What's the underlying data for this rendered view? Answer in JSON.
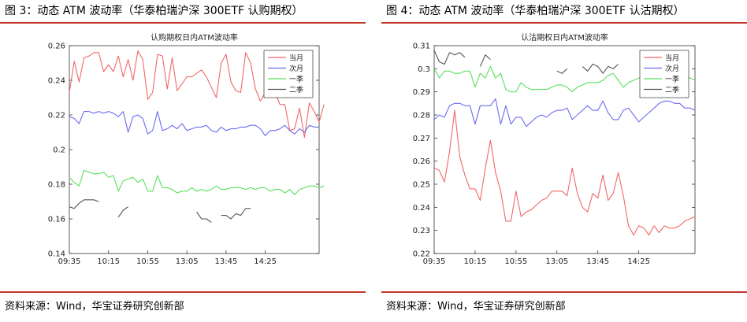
{
  "figures": [
    {
      "figure_title": "图 3：动态 ATM 波动率（华泰柏瑞沪深 300ETF 认购期权）",
      "source": "资料来源：Wind，华宝证券研究创新部"
    },
    {
      "figure_title": "图 4：动态 ATM 波动率（华泰柏瑞沪深 300ETF 认沽期权）",
      "source": "资料来源：Wind，华宝证券研究创新部"
    }
  ],
  "colors": {
    "rule": "#c0392b",
    "当月": "#f06868",
    "次月": "#6b6bf0",
    "一季": "#59e05c",
    "二季": "#555555"
  },
  "chart_data": [
    {
      "type": "line",
      "title": "认购期权日内ATM波动率",
      "xlabel": "",
      "ylabel": "",
      "x_ticks": [
        "09:35",
        "10:15",
        "10:55",
        "13:05",
        "13:45",
        "14:25"
      ],
      "x_tick_index": [
        0,
        8,
        16,
        24,
        32,
        40
      ],
      "y_ticks": [
        "0.14",
        "0.16",
        "0.18",
        "0.2",
        "0.22",
        "0.24",
        "0.26"
      ],
      "ylim": [
        0.14,
        0.26
      ],
      "xlim": [
        0,
        51
      ],
      "legend": {
        "placement": "top-right",
        "entries": [
          "当月",
          "次月",
          "一季",
          "二季"
        ]
      },
      "grid": false,
      "series": [
        {
          "name": "当月",
          "values": [
            0.233,
            0.251,
            0.239,
            0.253,
            0.254,
            0.256,
            0.256,
            0.245,
            0.249,
            0.245,
            0.254,
            0.242,
            0.252,
            0.24,
            0.257,
            0.252,
            0.229,
            0.233,
            0.255,
            0.254,
            0.235,
            0.253,
            0.234,
            0.238,
            0.242,
            0.242,
            0.244,
            0.246,
            0.242,
            0.236,
            0.23,
            0.25,
            0.255,
            0.239,
            0.234,
            0.233,
            0.256,
            0.25,
            0.235,
            0.228,
            0.233,
            0.246,
            0.233,
            0.226,
            0.226,
            0.211,
            0.212,
            0.224,
            0.207,
            0.227,
            0.222,
            0.216,
            0.226
          ]
        },
        {
          "name": "次月",
          "values": [
            0.219,
            0.218,
            0.215,
            0.222,
            0.222,
            0.221,
            0.222,
            0.221,
            0.222,
            0.221,
            0.219,
            0.222,
            0.21,
            0.219,
            0.22,
            0.218,
            0.209,
            0.211,
            0.222,
            0.211,
            0.212,
            0.214,
            0.212,
            0.215,
            0.211,
            0.212,
            0.213,
            0.213,
            0.214,
            0.211,
            0.21,
            0.213,
            0.211,
            0.212,
            0.212,
            0.213,
            0.213,
            0.214,
            0.214,
            0.212,
            0.208,
            0.211,
            0.211,
            0.212,
            0.214,
            0.211,
            0.209,
            0.212,
            0.21,
            0.214,
            0.213,
            0.213
          ]
        },
        {
          "name": "一季",
          "values": [
            0.184,
            0.181,
            0.179,
            0.188,
            0.187,
            0.186,
            0.186,
            0.187,
            0.184,
            0.185,
            0.176,
            0.182,
            0.183,
            0.184,
            0.181,
            0.183,
            0.176,
            0.176,
            0.185,
            0.178,
            0.178,
            0.177,
            0.175,
            0.176,
            0.176,
            0.178,
            0.176,
            0.177,
            0.176,
            0.177,
            0.179,
            0.177,
            0.177,
            0.178,
            0.178,
            0.178,
            0.177,
            0.178,
            0.177,
            0.178,
            0.178,
            0.176,
            0.177,
            0.177,
            0.175,
            0.177,
            0.174,
            0.177,
            0.178,
            0.179,
            0.179,
            0.178,
            0.179
          ]
        },
        {
          "name": "二季",
          "values": [
            0.167,
            0.166,
            0.169,
            0.171,
            0.171,
            0.171,
            0.17,
            null,
            null,
            null,
            0.161,
            0.165,
            0.167,
            null,
            null,
            null,
            null,
            null,
            null,
            null,
            null,
            null,
            null,
            null,
            null,
            null,
            0.164,
            0.16,
            0.16,
            0.158,
            null,
            0.162,
            0.162,
            0.16,
            0.163,
            0.162,
            0.166,
            0.166,
            null,
            null,
            null,
            null,
            null,
            null,
            null,
            null,
            null,
            null,
            null,
            null,
            null,
            null
          ]
        }
      ]
    },
    {
      "type": "line",
      "title": "认沽期权日内ATM波动率",
      "xlabel": "",
      "ylabel": "",
      "x_ticks": [
        "09:35",
        "10:15",
        "10:55",
        "13:05",
        "13:45",
        "14:25"
      ],
      "x_tick_index": [
        0,
        8,
        16,
        24,
        32,
        40
      ],
      "y_ticks": [
        "0.22",
        "0.23",
        "0.24",
        "0.25",
        "0.26",
        "0.27",
        "0.28",
        "0.29",
        "0.3",
        "0.31"
      ],
      "ylim": [
        0.22,
        0.31
      ],
      "xlim": [
        0,
        51
      ],
      "legend": {
        "placement": "top-right",
        "entries": [
          "当月",
          "次月",
          "一季",
          "二季"
        ]
      },
      "grid": false,
      "series": [
        {
          "name": "当月",
          "values": [
            0.257,
            0.256,
            0.251,
            0.264,
            0.282,
            0.262,
            0.254,
            0.248,
            0.248,
            0.243,
            0.257,
            0.269,
            0.255,
            0.247,
            0.234,
            0.234,
            0.247,
            0.236,
            0.238,
            0.239,
            0.241,
            0.243,
            0.244,
            0.247,
            0.247,
            0.247,
            0.245,
            0.257,
            0.246,
            0.24,
            0.238,
            0.246,
            0.244,
            0.254,
            0.243,
            0.246,
            0.255,
            0.245,
            0.232,
            0.228,
            0.232,
            0.231,
            0.228,
            0.232,
            0.229,
            0.232,
            0.231,
            0.231,
            0.232,
            0.234,
            0.235,
            0.236
          ]
        },
        {
          "name": "次月",
          "values": [
            0.278,
            0.28,
            0.279,
            0.284,
            0.285,
            0.285,
            0.284,
            0.284,
            0.276,
            0.284,
            0.284,
            0.284,
            0.287,
            0.276,
            0.284,
            0.276,
            0.279,
            0.279,
            0.275,
            0.277,
            0.279,
            0.28,
            0.279,
            0.281,
            0.282,
            0.282,
            0.283,
            0.278,
            0.28,
            0.282,
            0.284,
            0.282,
            0.282,
            0.286,
            0.281,
            0.278,
            0.278,
            0.282,
            0.283,
            0.28,
            0.277,
            0.279,
            0.281,
            0.283,
            0.285,
            0.286,
            0.286,
            0.285,
            0.285,
            0.283,
            0.283,
            0.282
          ]
        },
        {
          "name": "一季",
          "values": [
            0.3,
            0.296,
            0.299,
            0.299,
            0.298,
            0.298,
            0.299,
            0.299,
            0.292,
            0.298,
            0.296,
            0.301,
            0.296,
            0.298,
            0.291,
            0.29,
            0.29,
            0.294,
            0.292,
            0.291,
            0.291,
            0.291,
            0.291,
            0.292,
            0.293,
            0.293,
            0.292,
            0.29,
            0.292,
            0.293,
            0.294,
            0.294,
            0.294,
            0.295,
            0.297,
            0.298,
            0.295,
            0.292,
            0.294,
            0.295,
            0.296,
            0.296,
            0.292,
            0.293,
            0.293,
            0.294,
            0.296,
            0.296,
            0.296,
            0.297,
            0.296,
            0.295
          ]
        },
        {
          "name": "二季",
          "values": [
            0.308,
            0.303,
            0.302,
            0.307,
            0.306,
            0.307,
            0.305,
            null,
            null,
            0.301,
            0.306,
            0.304,
            null,
            null,
            null,
            null,
            null,
            null,
            null,
            null,
            null,
            null,
            null,
            null,
            0.299,
            0.298,
            0.3,
            null,
            null,
            0.301,
            0.299,
            0.302,
            0.301,
            0.298,
            0.301,
            0.3,
            0.302,
            null,
            null,
            null,
            null,
            null,
            null,
            null,
            null,
            null,
            null,
            null,
            null,
            null,
            null,
            null
          ]
        }
      ]
    }
  ]
}
